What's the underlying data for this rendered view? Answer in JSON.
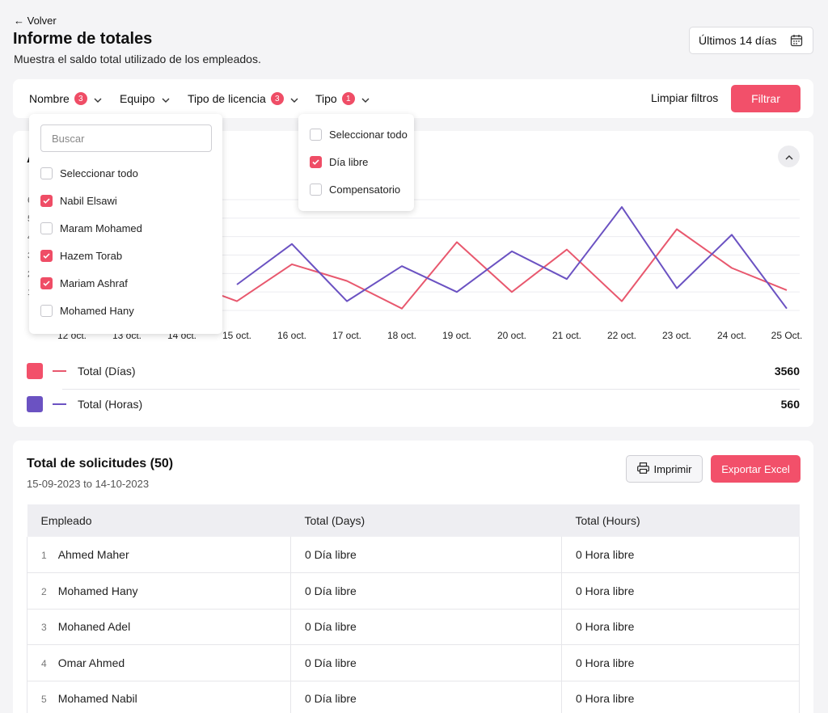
{
  "header": {
    "back_label": "← Volver",
    "title": "Informe de totales",
    "subtitle": "Muestra el saldo total utilizado de los empleados.",
    "date_range": "Últimos 14 días"
  },
  "filters": {
    "items": [
      {
        "label": "Nombre",
        "badge": "3"
      },
      {
        "label": "Equipo",
        "badge": ""
      },
      {
        "label": "Tipo de licencia",
        "badge": "3"
      },
      {
        "label": "Tipo",
        "badge": "1"
      }
    ],
    "clear_label": "Limpiar filtros",
    "apply_label": "Filtrar"
  },
  "name_dropdown": {
    "search_placeholder": "Buscar",
    "options": [
      {
        "label": "Seleccionar todo",
        "checked": false
      },
      {
        "label": "Nabil Elsawi",
        "checked": true
      },
      {
        "label": "Maram Mohamed",
        "checked": false
      },
      {
        "label": "Hazem Torab",
        "checked": true
      },
      {
        "label": "Mariam Ashraf",
        "checked": true
      },
      {
        "label": "Mohamed Hany",
        "checked": false
      }
    ]
  },
  "type_dropdown": {
    "options": [
      {
        "label": "Seleccionar todo",
        "checked": false
      },
      {
        "label": "Día libre",
        "checked": true
      },
      {
        "label": "Compensatorio",
        "checked": false
      }
    ]
  },
  "chart_data": {
    "type": "line",
    "title": "A",
    "xlabel": "",
    "ylabel": "",
    "categories": [
      "12 oct.",
      "13 oct.",
      "14 oct.",
      "15 oct.",
      "16 oct.",
      "17 oct.",
      "18 oct.",
      "19 oct.",
      "20 oct.",
      "21 oct.",
      "22 oct.",
      "23 oct.",
      "24 oct.",
      "25 Oct."
    ],
    "y_ticks": [
      "",
      "1",
      "2",
      "3",
      "4",
      "5",
      "6"
    ],
    "ylim": [
      0,
      6
    ],
    "grid": true,
    "series": [
      {
        "name": "Total (Días)",
        "color": "#e8586e",
        "values": [
          null,
          null,
          1.6,
          0.5,
          2.5,
          1.6,
          0.1,
          3.7,
          1.0,
          3.3,
          0.5,
          4.4,
          2.3,
          1.1
        ]
      },
      {
        "name": "Total (Horas)",
        "color": "#6b52c2",
        "values": [
          null,
          null,
          null,
          1.4,
          3.6,
          0.5,
          2.4,
          1.0,
          3.2,
          1.7,
          5.6,
          1.2,
          4.1,
          0.1
        ]
      }
    ]
  },
  "legend": [
    {
      "label": "Total (Días)",
      "total": "3560",
      "color": "#f2506a"
    },
    {
      "label": "Total (Horas)",
      "total": "560",
      "color": "#6b52c2"
    }
  ],
  "requests": {
    "title": "Total de solicitudes (50)",
    "dates": "15-09-2023 to 14-10-2023",
    "print_label": "Imprimir",
    "export_label": "Exportar Excel",
    "columns": [
      "Empleado",
      "Total (Days)",
      "Total (Hours)"
    ],
    "rows": [
      {
        "num": "1",
        "name": "Ahmed Maher",
        "days": "0 Día libre",
        "hours": "0 Hora libre"
      },
      {
        "num": "2",
        "name": "Mohamed Hany",
        "days": "0 Día libre",
        "hours": "0 Hora libre"
      },
      {
        "num": "3",
        "name": "Mohaned Adel",
        "days": "0 Día libre",
        "hours": "0 Hora libre"
      },
      {
        "num": "4",
        "name": "Omar Ahmed",
        "days": "0 Día libre",
        "hours": "0 Hora libre"
      },
      {
        "num": "5",
        "name": "Mohamed Nabil",
        "days": "0 Día libre",
        "hours": "0 Hora libre"
      }
    ]
  }
}
